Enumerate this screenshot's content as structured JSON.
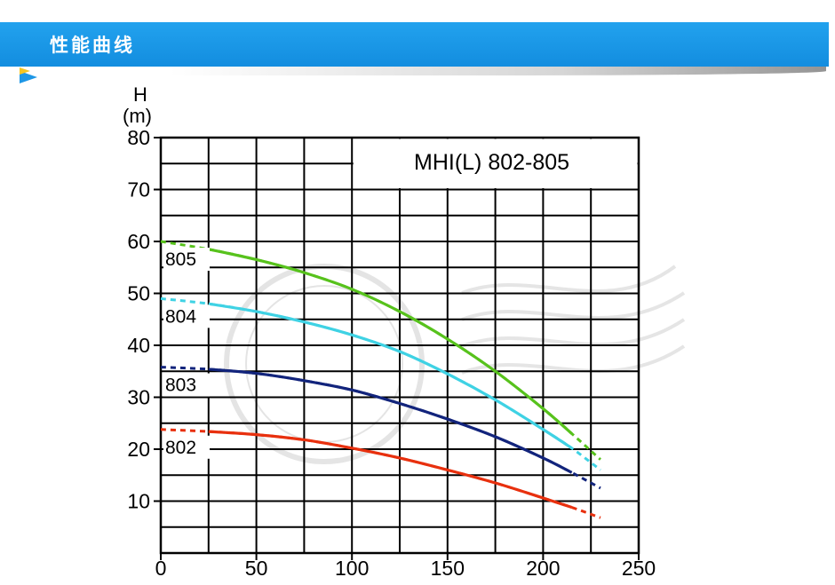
{
  "header": {
    "title": "性能曲线",
    "bg_color": "#1a95e6",
    "accent_color": "#f5c623"
  },
  "chart_data": {
    "type": "line",
    "title": "MHI(L) 802-805",
    "ylabel": "H",
    "yunit": "(m)",
    "xlabel": "",
    "xlim": [
      0,
      250
    ],
    "ylim": [
      0,
      80
    ],
    "x_ticks": [
      "0",
      "50",
      "100",
      "150",
      "200",
      "250"
    ],
    "y_ticks": [
      "10",
      "20",
      "30",
      "40",
      "50",
      "60",
      "70",
      "80"
    ],
    "grid": true,
    "series": [
      {
        "name": "805",
        "color": "#57c21c",
        "x": [
          0,
          25,
          50,
          75,
          100,
          125,
          150,
          175,
          200,
          215,
          230
        ],
        "y": [
          60,
          58.5,
          56.5,
          54,
          50.8,
          46.5,
          41.2,
          35,
          27.8,
          23,
          18
        ]
      },
      {
        "name": "804",
        "color": "#3fd2e4",
        "x": [
          0,
          25,
          50,
          75,
          100,
          125,
          150,
          175,
          200,
          215,
          230
        ],
        "y": [
          49,
          48,
          46.5,
          44.5,
          42,
          38.8,
          34.5,
          29.5,
          23.8,
          20.2,
          16
        ]
      },
      {
        "name": "803",
        "color": "#12247c",
        "x": [
          0,
          25,
          50,
          75,
          100,
          125,
          150,
          175,
          200,
          215,
          230
        ],
        "y": [
          35.8,
          35.4,
          34.6,
          33.2,
          31.4,
          28.8,
          25.8,
          22.4,
          18.3,
          15.5,
          12.5
        ]
      },
      {
        "name": "802",
        "color": "#e8300e",
        "x": [
          0,
          25,
          50,
          75,
          100,
          125,
          150,
          175,
          200,
          215,
          230
        ],
        "y": [
          23.8,
          23.4,
          22.8,
          21.8,
          20.2,
          18.3,
          16,
          13.5,
          10.6,
          8.8,
          6.8
        ]
      }
    ]
  }
}
